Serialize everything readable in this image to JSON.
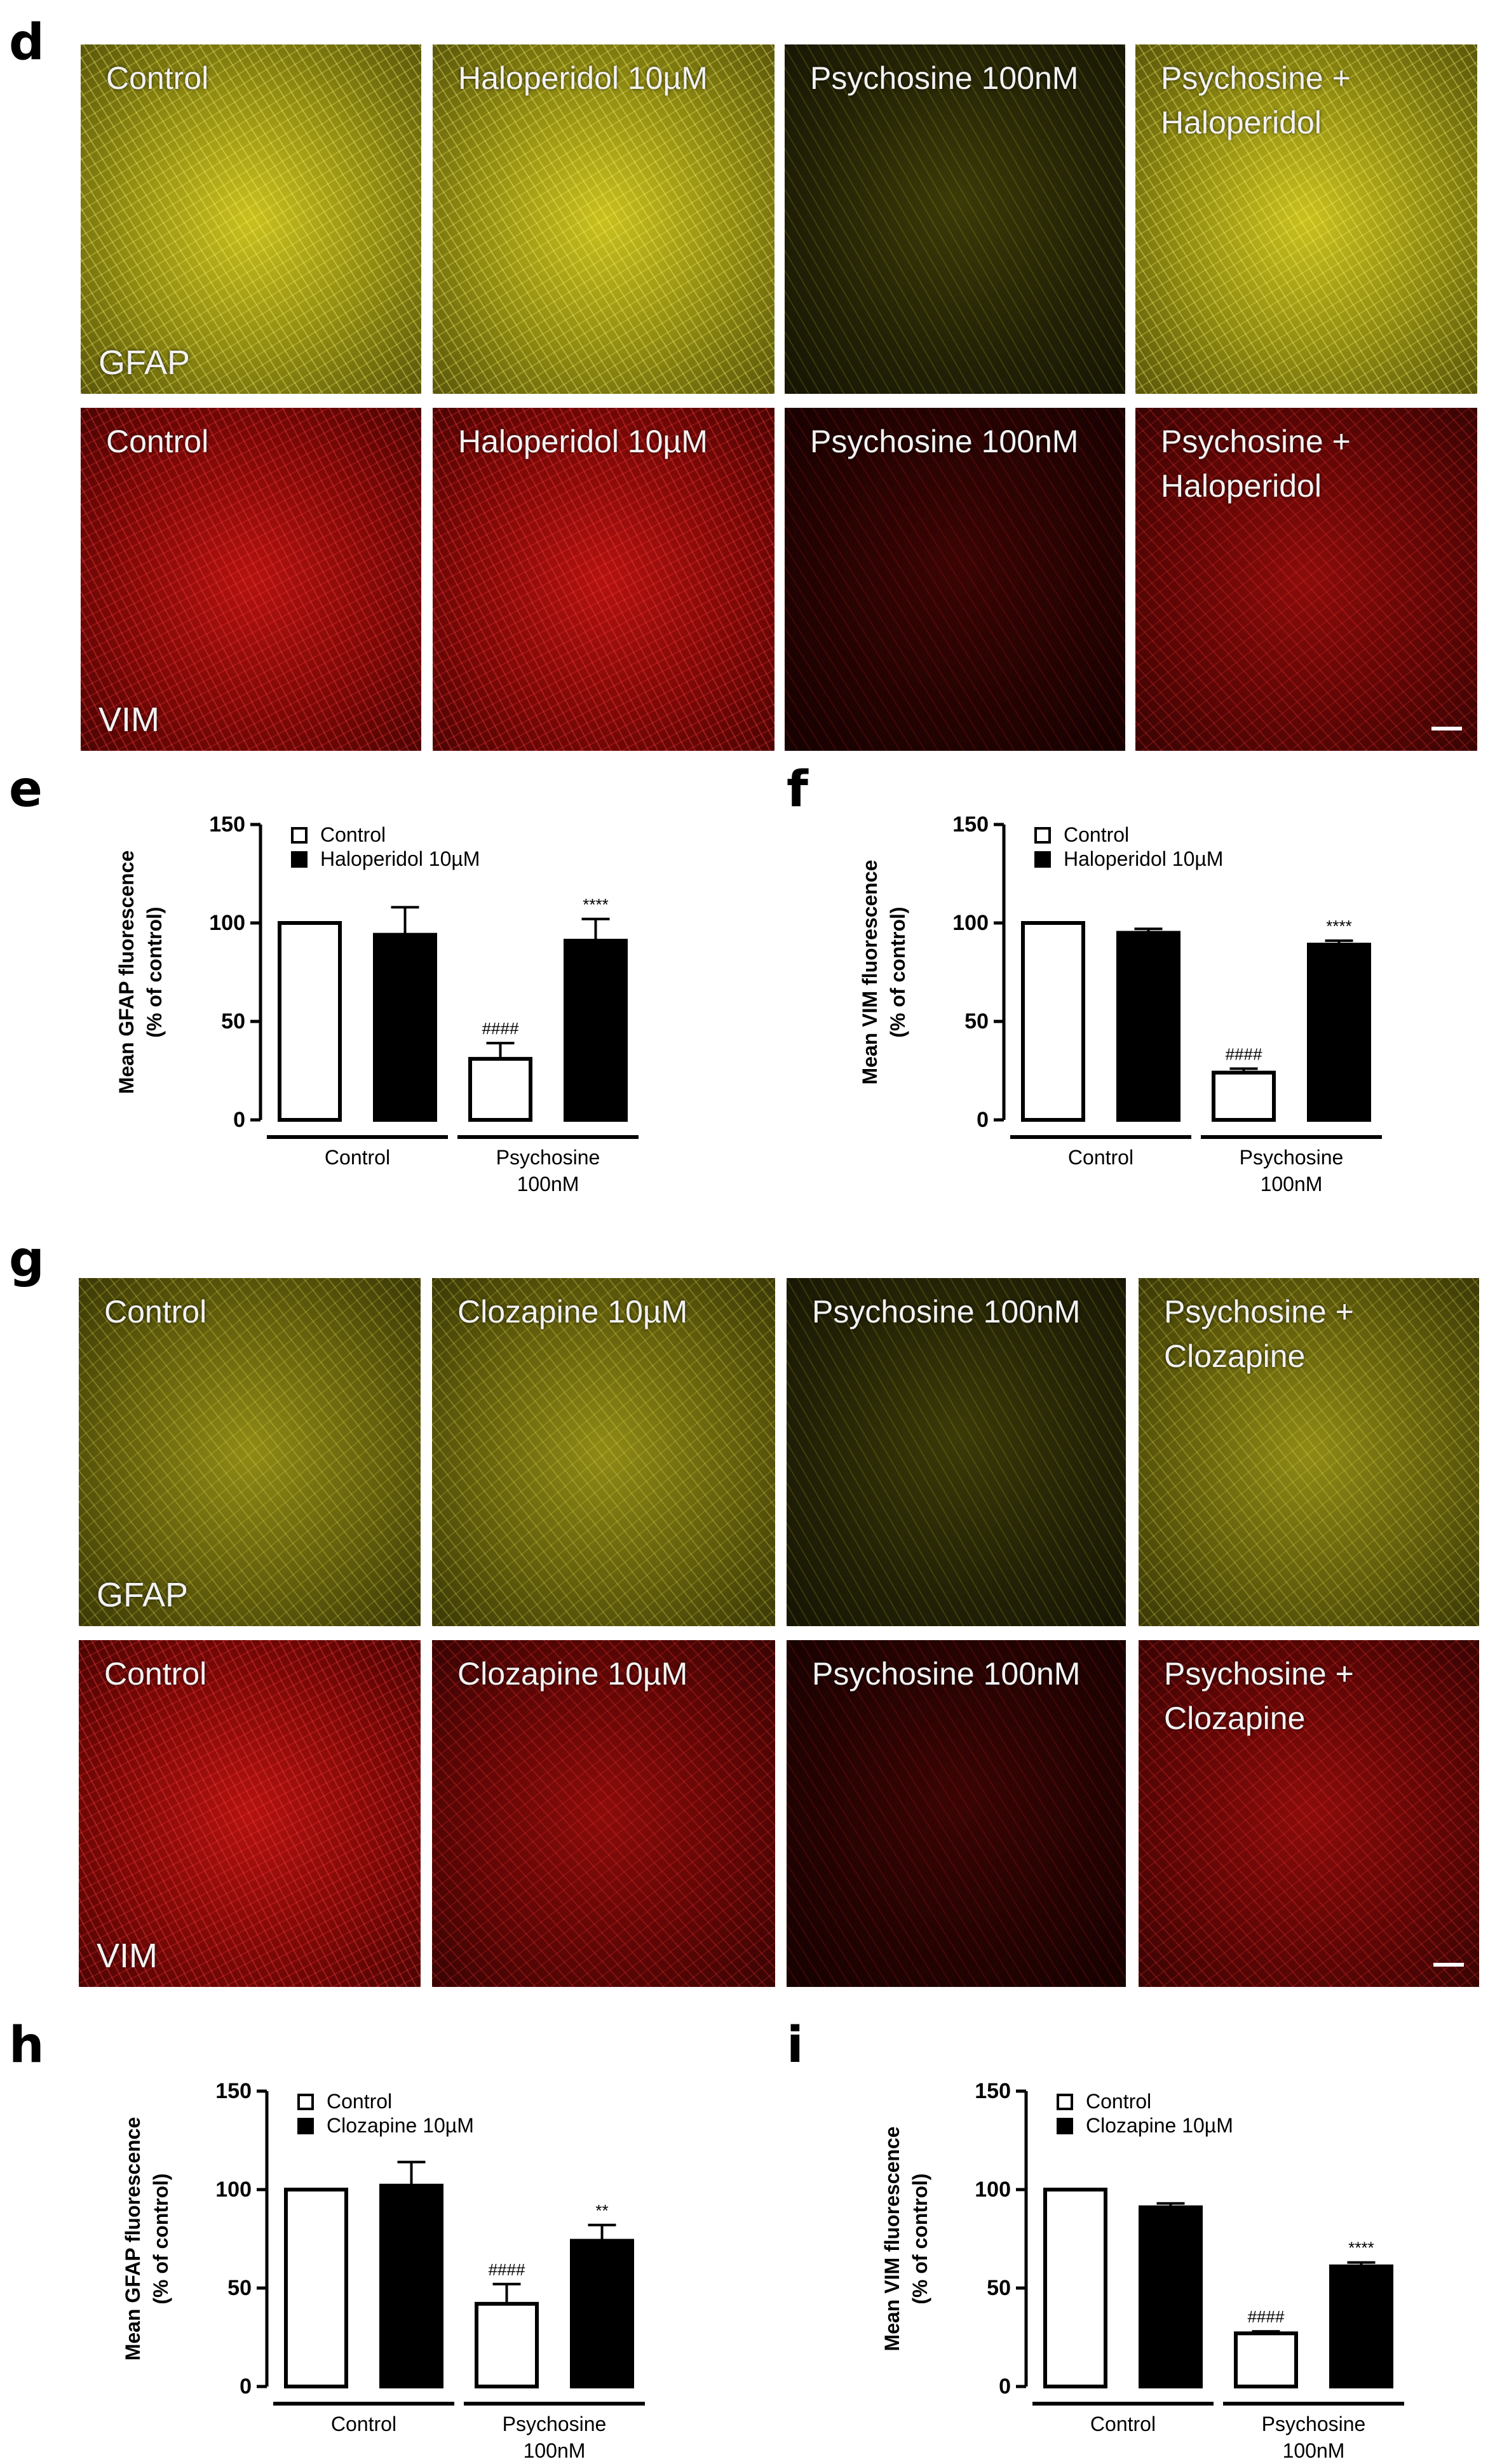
{
  "panel_letters": {
    "d": "d",
    "e": "e",
    "f": "f",
    "g": "g",
    "h": "h",
    "i": "i"
  },
  "figure_d": {
    "stains": [
      "GFAP",
      "VIM"
    ],
    "gfap_labels": [
      "Control",
      "Haloperidol 10µM",
      "Psychosine 100nM",
      "Psychosine +\nHaloperidol"
    ],
    "vim_labels": [
      "Control",
      "Haloperidol 10µM",
      "Psychosine 100nM",
      "Psychosine +\nHaloperidol"
    ]
  },
  "figure_g": {
    "stains": [
      "GFAP",
      "VIM"
    ],
    "gfap_labels": [
      "Control",
      "Clozapine 10µM",
      "Psychosine 100nM",
      "Psychosine +\nClozapine"
    ],
    "vim_labels": [
      "Control",
      "Clozapine 10µM",
      "Psychosine 100nM",
      "Psychosine +\nClozapine"
    ]
  },
  "colors": {
    "yellow_channel": "#c9c01e",
    "red_channel": "#b3120f",
    "bar_treated": "#000000",
    "bar_control": "#ffffff"
  },
  "chart_data": [
    {
      "panel": "e",
      "type": "bar",
      "ylabel": "Mean GFAP fluorescence\n(% of control)",
      "ylim": [
        0,
        150
      ],
      "yticks": [
        0,
        50,
        100,
        150
      ],
      "groups": [
        "Control",
        "Psychosine\n100nM"
      ],
      "series": [
        {
          "name": "Control",
          "values": [
            100,
            31
          ],
          "errors": [
            0,
            8
          ]
        },
        {
          "name": "Haloperidol 10µM",
          "values": [
            94,
            91
          ],
          "errors": [
            14,
            11
          ]
        }
      ],
      "annotations": [
        {
          "group": 1,
          "series": 0,
          "text": "####"
        },
        {
          "group": 1,
          "series": 1,
          "text": "****"
        }
      ],
      "legend_position": "top-left"
    },
    {
      "panel": "f",
      "type": "bar",
      "ylabel": "Mean VIM fluorescence\n(% of control)",
      "ylim": [
        0,
        150
      ],
      "yticks": [
        0,
        50,
        100,
        150
      ],
      "groups": [
        "Control",
        "Psychosine\n100nM"
      ],
      "series": [
        {
          "name": "Control",
          "values": [
            100,
            24
          ],
          "errors": [
            0,
            2
          ]
        },
        {
          "name": "Haloperidol 10µM",
          "values": [
            95,
            89
          ],
          "errors": [
            2,
            2
          ]
        }
      ],
      "annotations": [
        {
          "group": 1,
          "series": 0,
          "text": "####"
        },
        {
          "group": 1,
          "series": 1,
          "text": "****"
        }
      ],
      "legend_position": "top-left"
    },
    {
      "panel": "h",
      "type": "bar",
      "ylabel": "Mean GFAP fluorescence\n(% of control)",
      "ylim": [
        0,
        150
      ],
      "yticks": [
        0,
        50,
        100,
        150
      ],
      "groups": [
        "Control",
        "Psychosine\n100nM"
      ],
      "series": [
        {
          "name": "Control",
          "values": [
            100,
            42
          ],
          "errors": [
            0,
            10
          ]
        },
        {
          "name": "Clozapine 10µM",
          "values": [
            102,
            74
          ],
          "errors": [
            12,
            8
          ]
        }
      ],
      "annotations": [
        {
          "group": 1,
          "series": 0,
          "text": "####"
        },
        {
          "group": 1,
          "series": 1,
          "text": "**"
        }
      ],
      "legend_position": "top-left"
    },
    {
      "panel": "i",
      "type": "bar",
      "ylabel": "Mean VIM fluorescence\n(% of control)",
      "ylim": [
        0,
        150
      ],
      "yticks": [
        0,
        50,
        100,
        150
      ],
      "groups": [
        "Control",
        "Psychosine\n100nM"
      ],
      "series": [
        {
          "name": "Control",
          "values": [
            100,
            27
          ],
          "errors": [
            0,
            1
          ]
        },
        {
          "name": "Clozapine 10µM",
          "values": [
            91,
            61
          ],
          "errors": [
            2,
            2
          ]
        }
      ],
      "annotations": [
        {
          "group": 1,
          "series": 0,
          "text": "####"
        },
        {
          "group": 1,
          "series": 1,
          "text": "****"
        }
      ],
      "legend_position": "top-left"
    }
  ]
}
